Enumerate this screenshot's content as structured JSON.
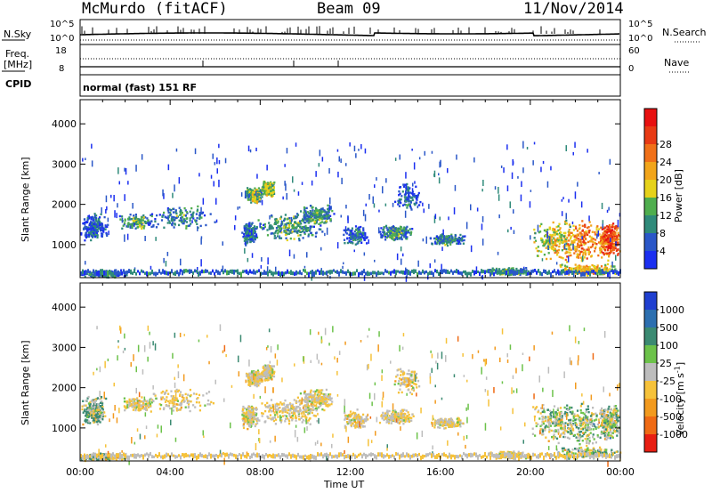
{
  "header": {
    "station": "McMurdo (fitACF)",
    "beam": "Beam 09",
    "date": "11/Nov/2014"
  },
  "status_panel": {
    "nsky_label": "N.Sky",
    "nsky_scale_top": "10^5",
    "nsky_scale_bottom": "10^0",
    "nsearch_label": "N.Search",
    "nsearch_scale_top": "10^5",
    "nsearch_scale_bottom": "10^0",
    "freq_label": "Freq.",
    "freq_unit": "[MHz]",
    "freq_top": "18",
    "freq_bottom": "8",
    "nave_label": "Nave",
    "nave_top": "60",
    "nave_bottom": "0",
    "cpid_label": "CPID",
    "cpid_text": "normal (fast) 151 RF"
  },
  "chart_data": [
    {
      "type": "heatmap",
      "name": "power",
      "ylabel": "Slant Range [km]",
      "ylim": [
        180,
        4600
      ],
      "yticks": [
        "1000",
        "2000",
        "3000",
        "4000"
      ],
      "xlim_hours": [
        0,
        24
      ],
      "colorbar": {
        "label": "Power [dB]",
        "ticks": [
          "4",
          "8",
          "12",
          "16",
          "20",
          "24",
          "28"
        ],
        "colors": [
          "#1b2ff0",
          "#2a57c8",
          "#2f8a7a",
          "#4fae4e",
          "#e6d21a",
          "#f2a51a",
          "#f07018",
          "#e83a14",
          "#e81010"
        ]
      }
    },
    {
      "type": "heatmap",
      "name": "velocity",
      "ylabel": "Slant Range [km]",
      "ylim": [
        180,
        4600
      ],
      "yticks": [
        "1000",
        "2000",
        "3000",
        "4000"
      ],
      "xlim_hours": [
        0,
        24
      ],
      "xticks": [
        "00:00",
        "04:00",
        "08:00",
        "12:00",
        "16:00",
        "20:00",
        "00:00"
      ],
      "xlabel": "Time UT",
      "colorbar": {
        "label": "Velocity [m s^-1]",
        "ticks": [
          "1000",
          "500",
          "100",
          "25",
          "-25",
          "-100",
          "-500",
          "-1000"
        ],
        "colors": [
          "#1f3fd0",
          "#2c6fb0",
          "#3b8a72",
          "#6cc24a",
          "#bdbdbd",
          "#f6c23a",
          "#f29a1e",
          "#ef6a14",
          "#e81e12"
        ]
      }
    }
  ]
}
